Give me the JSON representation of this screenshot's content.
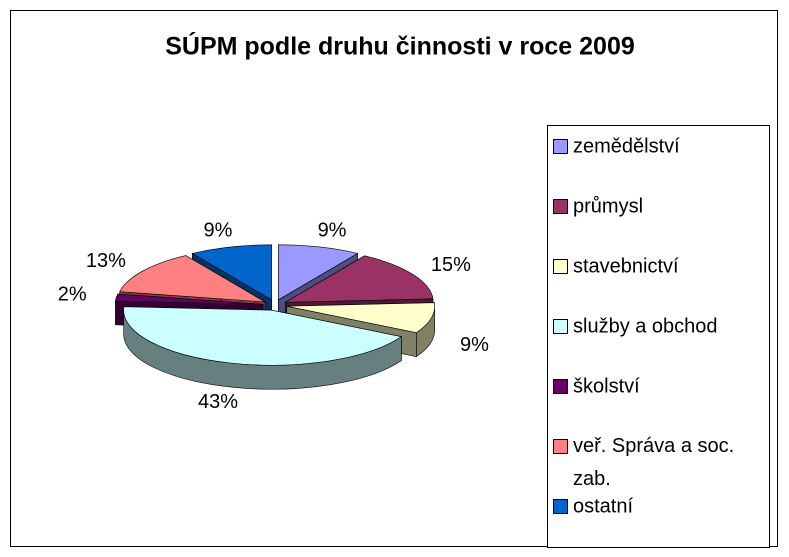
{
  "chart_data": {
    "type": "pie3d",
    "title": "SÚPM podle druhu činnosti v roce 2009",
    "categories": [
      "zemědělství",
      "průmysl",
      "stavebnictví",
      "služby a obchod",
      "školství",
      "veř. Správa a soc. zab.",
      "ostatní"
    ],
    "values": [
      9,
      15,
      9,
      43,
      2,
      13,
      9
    ],
    "value_labels": [
      "9%",
      "15%",
      "9%",
      "43%",
      "2%",
      "13%",
      "9%"
    ],
    "colors": [
      "#9999ff",
      "#993366",
      "#ffffcc",
      "#ccffff",
      "#660066",
      "#ff8080",
      "#0066cc"
    ],
    "legend": "right"
  }
}
